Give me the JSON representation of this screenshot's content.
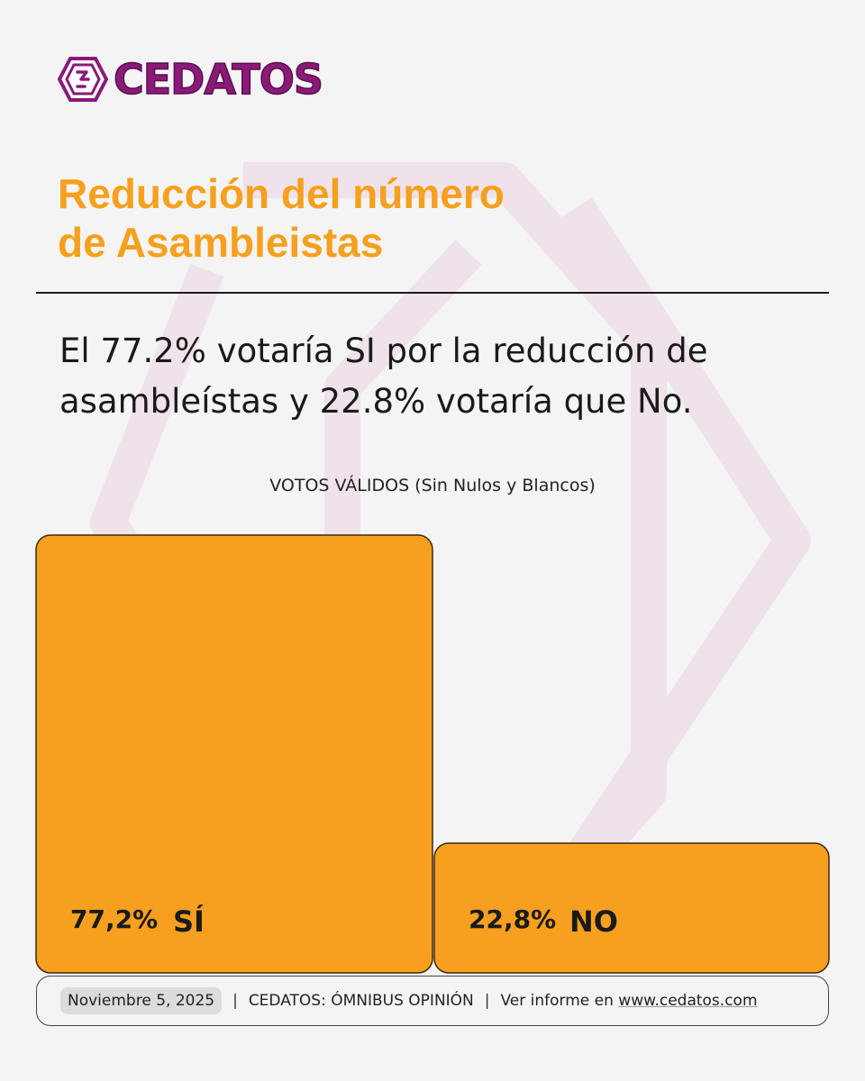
{
  "brand": {
    "logo_text": "CEDATOS",
    "color": "#8a1a78"
  },
  "title": {
    "line1": "Reducción del número",
    "line2": "de Asambleistas",
    "color": "#f5a01e"
  },
  "headline": {
    "line1": "El 77.2% votaría SI por la reducción de",
    "line2": "asambleístas y 22.8% votaría que No."
  },
  "chart_data": {
    "type": "bar",
    "title": "VOTOS VÁLIDOS (Sin Nulos y Blancos)",
    "categories": [
      "SÍ",
      "NO"
    ],
    "values": [
      77.2,
      22.8
    ],
    "value_labels": [
      "77,2%",
      "22,8%"
    ],
    "ylim": [
      0,
      77.2
    ],
    "bar_color": "#f7a01f",
    "grid": false
  },
  "footer": {
    "date": "Noviembre 5, 2025",
    "source": "CEDATOS: ÓMNIBUS OPINIÓN",
    "report_prefix": "Ver informe en ",
    "report_link": "www.cedatos.com",
    "separator": "|"
  }
}
